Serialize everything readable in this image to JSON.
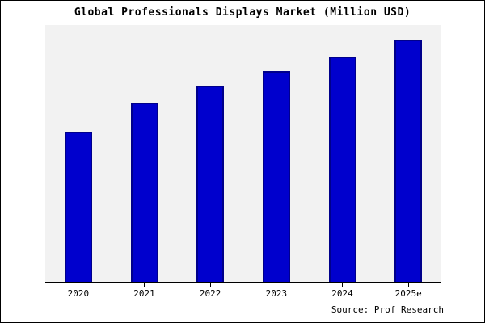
{
  "title": "Global Professionals Displays Market (Million USD)",
  "source": "Source: Prof Research",
  "colors": {
    "bar_fill": "#0000CD",
    "bar_edge": "#00008B",
    "plot_bg": "#F2F2F2",
    "page_bg": "#FFFFFF",
    "frame": "#000000"
  },
  "chart_data": {
    "type": "bar",
    "title": "Global Professionals Displays Market (Million USD)",
    "categories": [
      "2020",
      "2021",
      "2022",
      "2023",
      "2024",
      "2025e"
    ],
    "values": [
      62,
      74,
      81,
      87,
      93,
      100
    ],
    "ylim": [
      0,
      100
    ],
    "xlabel": "",
    "ylabel": "",
    "grid": false,
    "legend": null,
    "y_axis_ticks_visible": false,
    "annotations": [
      "Source: Prof Research"
    ]
  }
}
